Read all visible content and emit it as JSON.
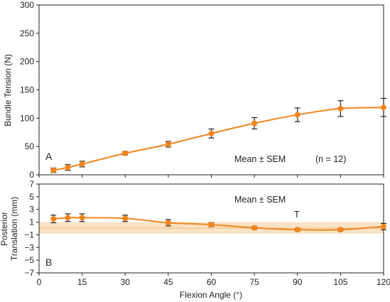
{
  "chart_data": [
    {
      "type": "line",
      "panel_label": "A",
      "ylabel": "Bundle Tension (N)",
      "xlim": [
        0,
        120
      ],
      "ylim": [
        0,
        300
      ],
      "x_ticks": [
        "0",
        "15",
        "30",
        "45",
        "60",
        "75",
        "90",
        "105",
        "120"
      ],
      "y_ticks": [
        "0",
        "50",
        "100",
        "150",
        "200",
        "250",
        "300"
      ],
      "annotations": [
        "Mean ± SEM",
        "(n = 12)"
      ],
      "series": [
        {
          "x": [
            5,
            10,
            15,
            30,
            45,
            60,
            75,
            90,
            105,
            120
          ],
          "y": [
            8,
            13,
            19,
            38,
            54,
            73,
            91,
            106,
            117,
            119
          ],
          "sem": [
            4,
            5,
            5,
            3,
            5,
            8,
            10,
            12,
            14,
            16
          ]
        }
      ],
      "colors": {
        "line": "#F0851E",
        "marker": "#F0851E"
      }
    },
    {
      "type": "line",
      "panel_label": "B",
      "ylabel_lines": [
        "Posterior",
        "Translation (mm)"
      ],
      "xlabel": "Flexion Angle (°)",
      "xlim": [
        0,
        120
      ],
      "ylim": [
        -7,
        7
      ],
      "x_ticks": [
        "0",
        "15",
        "30",
        "45",
        "60",
        "75",
        "90",
        "105",
        "120"
      ],
      "y_ticks": [
        "7",
        "5",
        "3",
        "1",
        "−1",
        "−3",
        "−5",
        "−7"
      ],
      "annotations": [
        "Mean ± SEM",
        "T"
      ],
      "band": {
        "range": [
          -0.8,
          1.0
        ],
        "mean": 0.05
      },
      "series": [
        {
          "x": [
            5,
            10,
            15,
            30,
            45,
            60,
            75,
            90,
            105,
            120
          ],
          "y": [
            1.5,
            1.7,
            1.7,
            1.6,
            0.9,
            0.6,
            0.1,
            -0.2,
            -0.2,
            0.3
          ],
          "sem": [
            0.6,
            0.6,
            0.6,
            0.5,
            0.5,
            0.3,
            0.2,
            0.2,
            0.2,
            0.5
          ]
        }
      ],
      "colors": {
        "line": "#F0851E",
        "marker": "#F0851E",
        "band": "#F8D8B0"
      }
    }
  ]
}
